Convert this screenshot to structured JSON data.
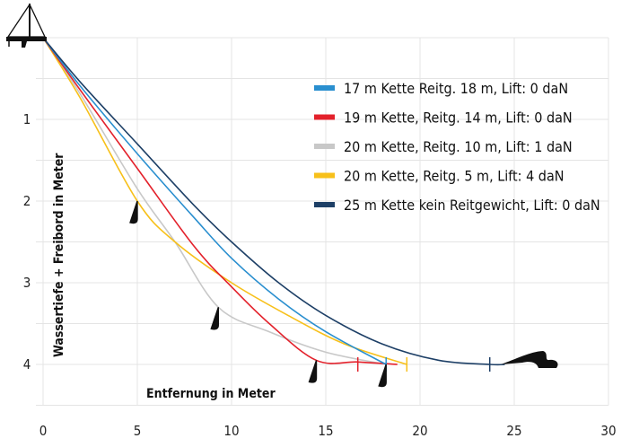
{
  "chart_data": {
    "type": "line",
    "title": "",
    "xlabel": "Entfernung in Meter",
    "ylabel": "Wassertiefe + Freibord in Meter",
    "xlim": [
      0,
      30
    ],
    "ylim": [
      4.5,
      0
    ],
    "y_inverted": true,
    "grid": true,
    "x_ticks": [
      "0",
      "5",
      "10",
      "15",
      "20",
      "25",
      "30"
    ],
    "y_ticks": [
      "1",
      "2",
      "3",
      "4"
    ],
    "legend_position": "top-right",
    "series": [
      {
        "name": "17 m Kette Reitg. 18 m, Lift: 0 daN",
        "color": "#2a8fcf",
        "x": [
          0,
          2,
          5,
          8,
          10,
          12.5,
          15,
          18.2
        ],
        "y": [
          0,
          0.6,
          1.42,
          2.2,
          2.7,
          3.2,
          3.6,
          4.0
        ],
        "marks": [
          18.2
        ]
      },
      {
        "name": "19 m Kette, Reitg. 14 m, Lift: 0 daN",
        "color": "#e3212b",
        "x": [
          0,
          2,
          5,
          8,
          10,
          12,
          14.5,
          16.7,
          18.8
        ],
        "y": [
          0,
          0.65,
          1.6,
          2.55,
          3.05,
          3.5,
          3.95,
          3.97,
          4.0
        ],
        "marks": [
          16.7
        ],
        "weight_at": 14.5
      },
      {
        "name": "20 m Kette, Reitg. 10 m, Lift: 1 daN",
        "color": "#c8c8c8",
        "x": [
          0,
          2,
          5,
          7,
          9.3,
          12,
          15,
          18.2
        ],
        "y": [
          0,
          0.7,
          1.85,
          2.5,
          3.3,
          3.6,
          3.85,
          4.0
        ],
        "marks": [],
        "weight_at": 9.3
      },
      {
        "name": "20 m Kette, Reitg. 5 m, Lift: 4 daN",
        "color": "#f7c01a",
        "x": [
          0,
          2,
          5,
          7,
          10,
          13,
          16,
          19.3
        ],
        "y": [
          0,
          0.75,
          2.0,
          2.5,
          3.0,
          3.4,
          3.75,
          4.0
        ],
        "marks": [
          19.3
        ],
        "weight_at": 5
      },
      {
        "name": "25 m Kette kein Reitgewicht, Lift: 0 daN",
        "color": "#1d3f66",
        "x": [
          0,
          2,
          5,
          8,
          10,
          12.5,
          15,
          18,
          21,
          23.7,
          24.5
        ],
        "y": [
          0,
          0.55,
          1.3,
          2.05,
          2.5,
          3.0,
          3.4,
          3.75,
          3.95,
          4.0,
          4.0
        ],
        "marks": [
          23.7
        ]
      }
    ]
  }
}
